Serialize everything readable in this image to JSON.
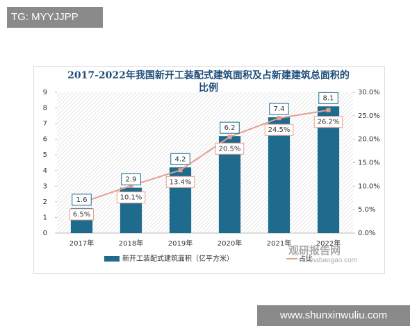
{
  "chart_data": {
    "type": "bar",
    "title": "2017-2022年我国新开工装配式建筑面积及占新建建筑总面积的比例",
    "categories": [
      "2017年",
      "2018年",
      "2019年",
      "2020年",
      "2021年",
      "2022年"
    ],
    "series": [
      {
        "name": "新开工装配式建筑面积（亿平方米）",
        "type": "bar",
        "color": "#1f6b8e",
        "values": [
          1.6,
          2.9,
          4.2,
          6.2,
          7.4,
          8.1
        ]
      },
      {
        "name": "占比",
        "type": "line",
        "axis": "y2",
        "color": "#e3a08e",
        "values": [
          6.5,
          10.1,
          13.4,
          20.5,
          24.5,
          26.2
        ],
        "value_labels": [
          "6.5%",
          "10.1%",
          "13.4%",
          "20.5%",
          "24.5%",
          "26.2%"
        ]
      }
    ],
    "ylim": [
      0,
      9
    ],
    "yticks": [
      0,
      1,
      2,
      3,
      4,
      5,
      6,
      7,
      8,
      9
    ],
    "y2lim": [
      0,
      30
    ],
    "y2ticks": [
      {
        "value": 0,
        "label": "0.0%"
      },
      {
        "value": 5,
        "label": "5.0%"
      },
      {
        "value": 10,
        "label": "10.0%"
      },
      {
        "value": 15,
        "label": "15.0%"
      },
      {
        "value": 20,
        "label": "20.0%"
      },
      {
        "value": 25,
        "label": "25.0%"
      },
      {
        "value": 30,
        "label": "30.0%"
      }
    ],
    "legend": "bottom"
  },
  "overlays": {
    "top_tag": "TG: MYYJJPP",
    "watermark": "观研报告网",
    "watermark_url": "chinabaogao.com",
    "site": "www.shunxinwuliu.com"
  }
}
